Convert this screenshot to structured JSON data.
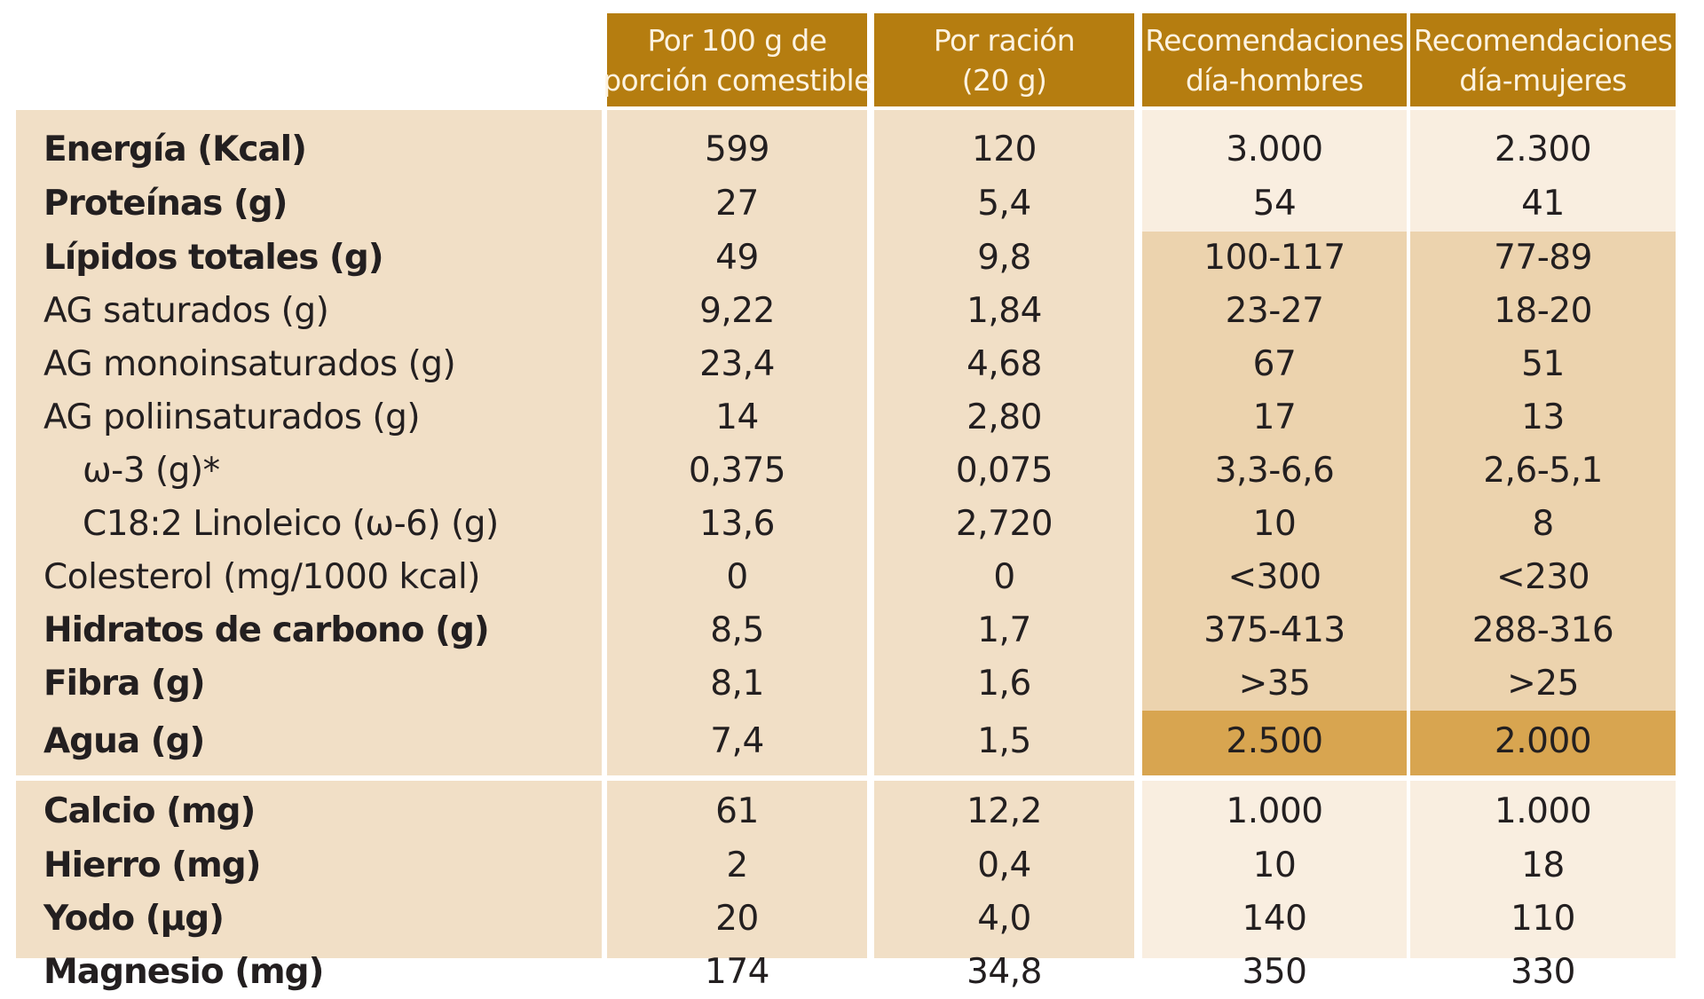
{
  "headers": {
    "col1": [
      "Por 100 g de",
      "porción comestible"
    ],
    "col2": [
      "Por ración",
      "(20 g)"
    ],
    "col3": [
      "Recomendaciones",
      "día-hombres"
    ],
    "col4": [
      "Recomendaciones",
      "día-mujeres"
    ]
  },
  "colors": {
    "header": "#b57d10",
    "table_bg": "#f1dfc6",
    "rec_light": "#f9eee0",
    "rec_mid": "#ecd3ae",
    "rec_dark": "#d8a550"
  },
  "rows": [
    {
      "label": "Energía (Kcal)",
      "v1": "599",
      "v2": "120",
      "v3": "3.000",
      "v4": "2.300"
    },
    {
      "label": "Proteínas (g)",
      "v1": "27",
      "v2": "5,4",
      "v3": "54",
      "v4": "41"
    },
    {
      "label": "Lípidos totales (g)",
      "v1": "49",
      "v2": "9,8",
      "v3": "100-117",
      "v4": "77-89"
    },
    {
      "label": "AG saturados (g)",
      "v1": "9,22",
      "v2": "1,84",
      "v3": "23-27",
      "v4": "18-20"
    },
    {
      "label": "AG monoinsaturados (g)",
      "v1": "23,4",
      "v2": "4,68",
      "v3": "67",
      "v4": "51"
    },
    {
      "label": "AG poliinsaturados (g)",
      "v1": "14",
      "v2": "2,80",
      "v3": "17",
      "v4": "13"
    },
    {
      "label": "ω-3 (g)*",
      "v1": "0,375",
      "v2": "0,075",
      "v3": "3,3-6,6",
      "v4": "2,6-5,1"
    },
    {
      "label": "C18:2 Linoleico (ω-6) (g)",
      "v1": "13,6",
      "v2": "2,720",
      "v3": "10",
      "v4": "8"
    },
    {
      "label": "Colesterol (mg/1000 kcal)",
      "v1": "0",
      "v2": "0",
      "v3": "<300",
      "v4": "<230"
    },
    {
      "label": "Hidratos de carbono (g)",
      "v1": "8,5",
      "v2": "1,7",
      "v3": "375-413",
      "v4": "288-316"
    },
    {
      "label": "Fibra (g)",
      "v1": "8,1",
      "v2": "1,6",
      "v3": ">35",
      "v4": ">25"
    },
    {
      "label": "Agua (g)",
      "v1": "7,4",
      "v2": "1,5",
      "v3": "2.500",
      "v4": "2.000"
    },
    {
      "label": "Calcio (mg)",
      "v1": "61",
      "v2": "12,2",
      "v3": "1.000",
      "v4": "1.000"
    },
    {
      "label": "Hierro (mg)",
      "v1": "2",
      "v2": "0,4",
      "v3": "10",
      "v4": "18"
    },
    {
      "label": "Yodo (µg)",
      "v1": "20",
      "v2": "4,0",
      "v3": "140",
      "v4": "110"
    },
    {
      "label": "Magnesio (mg)",
      "v1": "174",
      "v2": "34,8",
      "v3": "350",
      "v4": "330"
    }
  ]
}
